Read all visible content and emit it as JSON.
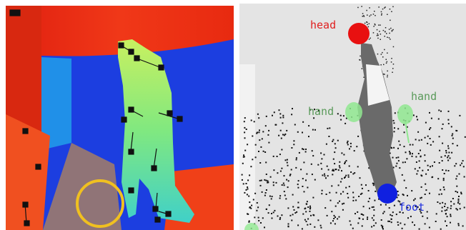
{
  "annotations": {
    "head": "head",
    "left_hand": "hand",
    "right_hand": "hand",
    "foot": "foot"
  }
}
